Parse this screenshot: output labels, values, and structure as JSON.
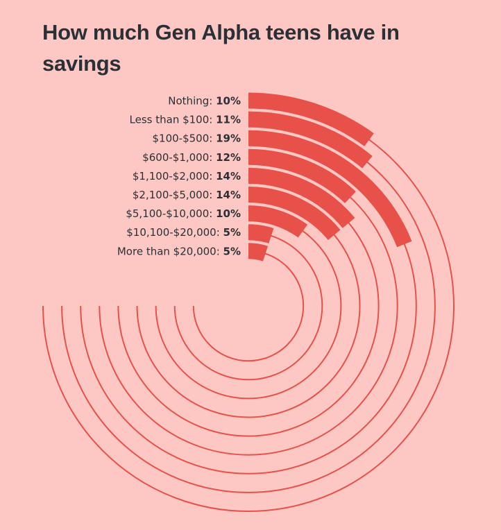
{
  "chart_data": {
    "type": "radial-bar",
    "title": "How much Gen Alpha teens have in savings",
    "unit": "%",
    "scale_max_percent": 100,
    "track_span_percent": 75,
    "categories": [
      "Nothing",
      "Less than $100",
      "$100-$500",
      "$600-$1,000",
      "$1,100-$2,000",
      "$2,100-$5,000",
      "$5,100-$10,000",
      "$10,100-$20,000",
      "More than $20,000"
    ],
    "values": [
      10,
      11,
      19,
      12,
      14,
      14,
      10,
      5,
      5
    ],
    "value_labels": [
      "10%",
      "11%",
      "19%",
      "12%",
      "14%",
      "14%",
      "10%",
      "5%",
      "5%"
    ],
    "colors": {
      "bar": "#E8504A",
      "track": "#E8504A",
      "background": "#FDC8C4",
      "text": "#2B2F36"
    }
  }
}
